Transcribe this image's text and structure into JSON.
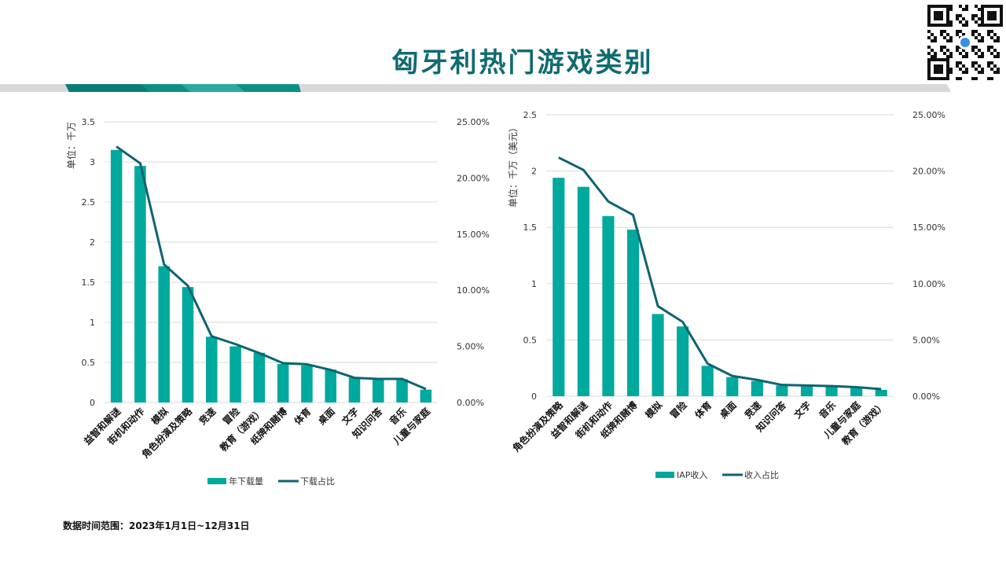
{
  "title": "匈牙利热门游戏类别",
  "footer": "数据时间范围：2023年1月1日~12月31日",
  "colors": {
    "bar": "#00a99d",
    "line": "#0d6470",
    "title": "#0f6b70",
    "grid": "#d9d9d9"
  },
  "chart_data": [
    {
      "type": "bar+line",
      "ylabel": "单位：千万",
      "ylim": [
        0,
        3.5
      ],
      "yticks": [
        "0",
        "0.5",
        "1",
        "1.5",
        "2",
        "2.5",
        "3",
        "3.5"
      ],
      "y2lim": [
        0,
        25
      ],
      "y2ticks": [
        "0.00%",
        "5.00%",
        "10.00%",
        "15.00%",
        "20.00%",
        "25.00%"
      ],
      "categories": [
        "益智和解谜",
        "街机和动作",
        "模拟",
        "角色扮演及策略",
        "竞速",
        "冒险",
        "教育（游戏）",
        "纸牌和赌博",
        "体育",
        "桌面",
        "文字",
        "知识问答",
        "音乐",
        "儿童与家庭"
      ],
      "series": [
        {
          "name": "年下载量",
          "type": "bar",
          "axis": "left",
          "values": [
            3.15,
            2.95,
            1.7,
            1.44,
            0.82,
            0.7,
            0.62,
            0.48,
            0.46,
            0.41,
            0.31,
            0.29,
            0.29,
            0.16
          ]
        },
        {
          "name": "下载占比",
          "type": "line",
          "axis": "right",
          "unit": "%",
          "values": [
            22.8,
            21.3,
            12.3,
            10.4,
            5.9,
            5.2,
            4.4,
            3.5,
            3.4,
            2.9,
            2.2,
            2.1,
            2.1,
            1.2
          ]
        }
      ],
      "legend": "bottom"
    },
    {
      "type": "bar+line",
      "ylabel": "单位：千万（美元）",
      "ylim": [
        0,
        2.5
      ],
      "yticks": [
        "0",
        "0.5",
        "1",
        "1.5",
        "2",
        "2.5"
      ],
      "y2lim": [
        0,
        25
      ],
      "y2ticks": [
        "0.00%",
        "5.00%",
        "10.00%",
        "15.00%",
        "20.00%",
        "25.00%"
      ],
      "categories": [
        "角色扮演及策略",
        "益智和解谜",
        "街机和动作",
        "纸牌和赌博",
        "模拟",
        "冒险",
        "体育",
        "桌面",
        "竞速",
        "知识问答",
        "文字",
        "音乐",
        "儿童与家庭",
        "教育（游戏）"
      ],
      "series": [
        {
          "name": "IAP收入",
          "type": "bar",
          "axis": "left",
          "values": [
            1.94,
            1.86,
            1.6,
            1.48,
            0.73,
            0.62,
            0.27,
            0.17,
            0.135,
            0.095,
            0.086,
            0.084,
            0.075,
            0.056
          ]
        },
        {
          "name": "收入占比",
          "type": "line",
          "axis": "right",
          "unit": "%",
          "values": [
            21.2,
            20.1,
            17.3,
            16.1,
            8.0,
            6.6,
            2.9,
            1.8,
            1.45,
            1.0,
            0.95,
            0.9,
            0.8,
            0.63
          ]
        }
      ],
      "legend": "bottom"
    }
  ]
}
